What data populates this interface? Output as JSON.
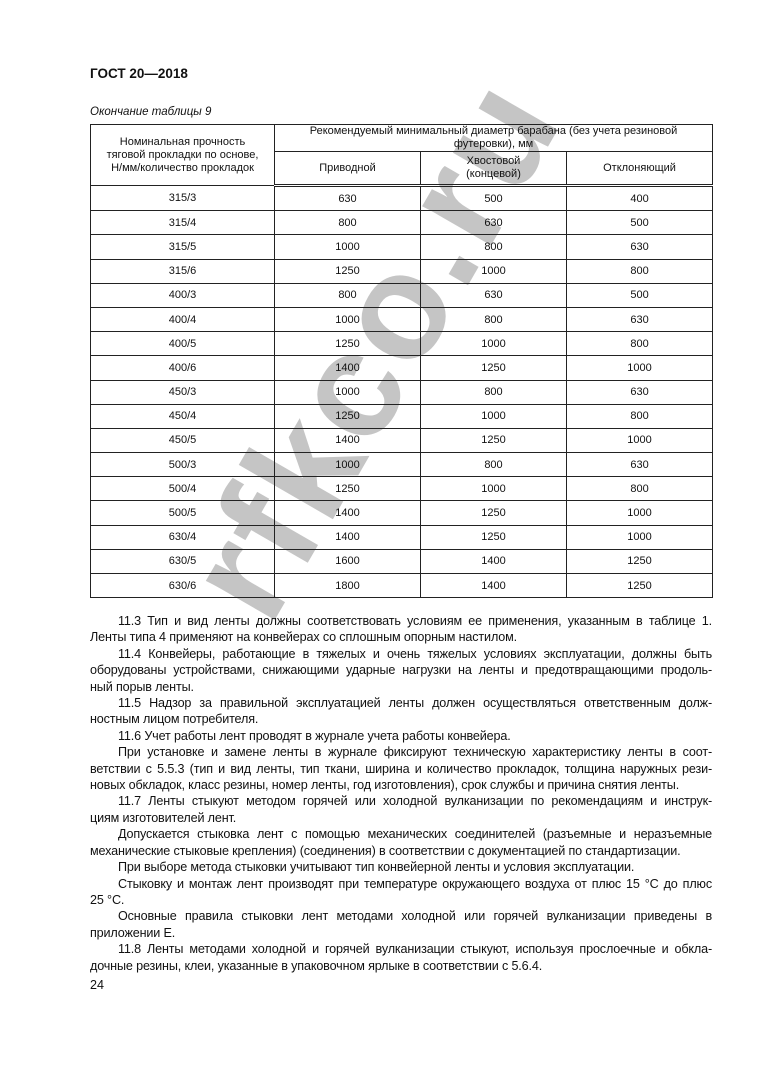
{
  "header": {
    "doc_code": "ГОСТ 20—2018"
  },
  "table": {
    "caption": "Окончание таблицы 9",
    "col1_header": "Номинальная прочность тяговой прокладки по основе, Н/мм/количество прокладок",
    "group_header": "Рекомендуемый минимальный диаметр барабана (без учета резиновой футеровки), мм",
    "subheaders": [
      "Приводной",
      "Хвостовой (концевой)",
      "Отклоняющий"
    ],
    "rows": [
      [
        "315/3",
        "630",
        "500",
        "400"
      ],
      [
        "315/4",
        "800",
        "630",
        "500"
      ],
      [
        "315/5",
        "1000",
        "800",
        "630"
      ],
      [
        "315/6",
        "1250",
        "1000",
        "800"
      ],
      [
        "400/3",
        "800",
        "630",
        "500"
      ],
      [
        "400/4",
        "1000",
        "800",
        "630"
      ],
      [
        "400/5",
        "1250",
        "1000",
        "800"
      ],
      [
        "400/6",
        "1400",
        "1250",
        "1000"
      ],
      [
        "450/3",
        "1000",
        "800",
        "630"
      ],
      [
        "450/4",
        "1250",
        "1000",
        "800"
      ],
      [
        "450/5",
        "1400",
        "1250",
        "1000"
      ],
      [
        "500/3",
        "1000",
        "800",
        "630"
      ],
      [
        "500/4",
        "1250",
        "1000",
        "800"
      ],
      [
        "500/5",
        "1400",
        "1250",
        "1000"
      ],
      [
        "630/4",
        "1400",
        "1250",
        "1000"
      ],
      [
        "630/5",
        "1600",
        "1400",
        "1250"
      ],
      [
        "630/6",
        "1800",
        "1400",
        "1250"
      ]
    ]
  },
  "paragraphs": [
    [
      "11.3  Тип и вид ленты должны соответствовать условиям ее применения, указанным в таблице 1.",
      "Ленты типа 4 применяют на конвейерах со сплошным опорным настилом."
    ],
    [
      "11.4  Конвейеры, работающие в тяжелых и очень тяжелых условиях эксплуатации, должны быть",
      "оборудованы устройствами, снижающими ударные нагрузки на ленты и предотвращающими продоль-",
      "ный порыв ленты."
    ],
    [
      "11.5  Надзор за правильной эксплуатацией ленты должен осуществляться ответственным долж-",
      "ностным лицом потребителя."
    ],
    [
      "11.6  Учет работы лент проводят в журнале учета работы конвейера."
    ],
    [
      "При установке и замене ленты в журнале фиксируют техническую характеристику ленты в соот-",
      "ветствии с 5.5.3  (тип и вид ленты, тип ткани, ширина и количество прокладок, толщина наружных рези-",
      "новых обкладок, класс резины, номер ленты, год изготовления), срок службы и причина снятия ленты."
    ],
    [
      "11.7  Ленты стыкуют методом горячей или холодной вулканизации по рекомендациям и инструк-",
      "циям изготовителей лент."
    ],
    [
      "Допускается стыковка лент с помощью механических соединителей (разъемные и неразъемные",
      "механические стыковые крепления) (соединения) в соответствии с документацией по стандартизации."
    ],
    [
      "При выборе метода стыковки учитывают тип конвейерной ленты и условия эксплуатации."
    ],
    [
      "Стыковку и монтаж лент производят при температуре окружающего воздуха от плюс 15 °С до плюс",
      "25 °С."
    ],
    [
      "Основные правила стыковки лент методами холодной или горячей вулканизации приведены в",
      "приложении Е."
    ],
    [
      "11.8  Ленты методами холодной и горячей вулканизации стыкуют, используя прослоечные и обкла-",
      "дочные резины, клеи, указанные в упаковочном ярлыке в соответствии с 5.6.4."
    ]
  ],
  "footer": {
    "page_number": "24"
  },
  "watermark": "rfkco.ru"
}
